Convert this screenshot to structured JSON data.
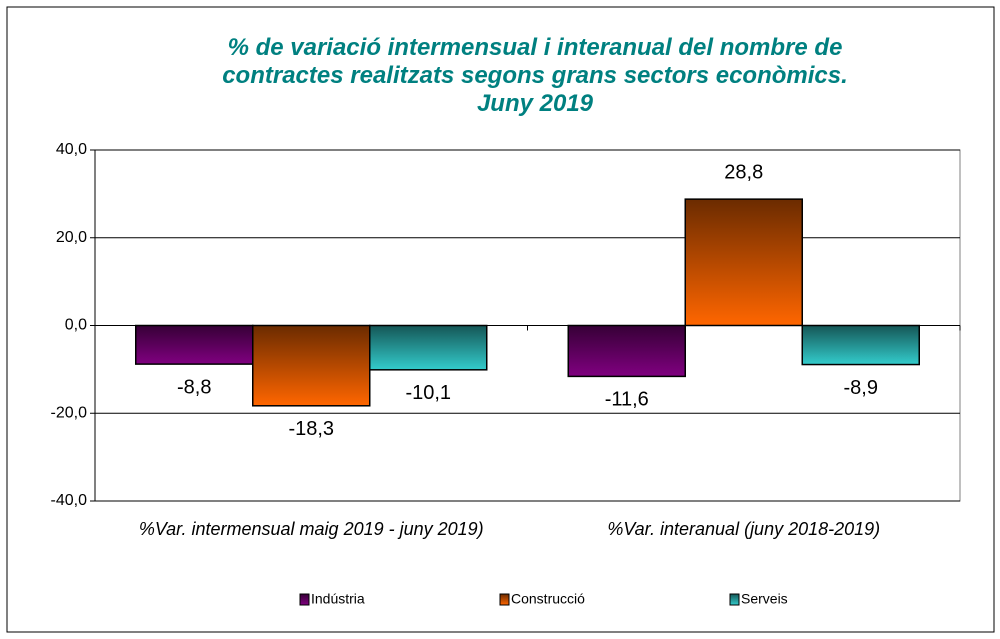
{
  "chart_data": {
    "type": "bar",
    "title": [
      "% de variació intermensual i interanual del nombre de",
      "contractes realitzats segons grans sectors econòmics.",
      "Juny 2019"
    ],
    "categories": [
      "%Var. intermensual maig 2019 - juny 2019)",
      "%Var. interanual  (juny 2018-2019)"
    ],
    "series": [
      {
        "name": "Indústria",
        "color": "#800080",
        "values": [
          -8.8,
          -11.6
        ],
        "value_labels": [
          "-8,8",
          "-11,6"
        ]
      },
      {
        "name": "Construcció",
        "color": "#ff6600",
        "values": [
          -18.3,
          28.8
        ],
        "value_labels": [
          "-18,3",
          "28,8"
        ]
      },
      {
        "name": "Serveis",
        "color": "#33cccc",
        "values": [
          -10.1,
          -8.9
        ],
        "value_labels": [
          "-10,1",
          "-8,9"
        ]
      }
    ],
    "ylim": [
      -40,
      40
    ],
    "yticks": [
      {
        "value": -40,
        "label": "-40,0"
      },
      {
        "value": -20,
        "label": "-20,0"
      },
      {
        "value": 0,
        "label": "0,0"
      },
      {
        "value": 20,
        "label": "20,0"
      },
      {
        "value": 40,
        "label": "40,0"
      }
    ],
    "grid": true,
    "legend": "bottom"
  }
}
